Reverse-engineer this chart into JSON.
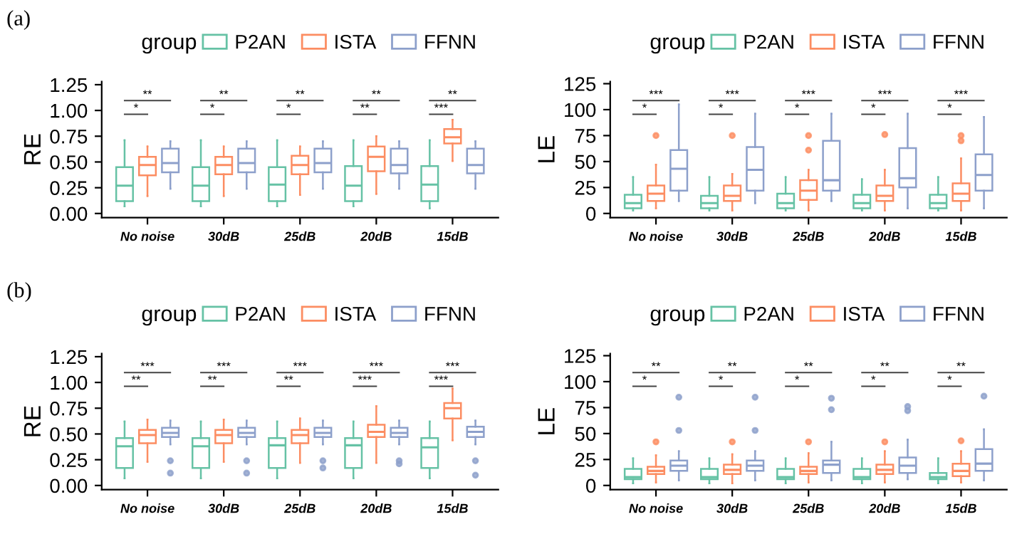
{
  "chart_data": [
    {
      "type": "box",
      "title": "(a)",
      "ylabel": "RE",
      "legend_title": "group",
      "legend": "top",
      "grid": false,
      "categories": [
        "No noise",
        "30dB",
        "25dB",
        "20dB",
        "15dB"
      ],
      "ylim": [
        -0.04,
        1.28
      ],
      "yticks": [
        {
          "value": 0,
          "label": "0.00"
        },
        {
          "value": 0.25,
          "label": "0.25"
        },
        {
          "value": 0.5,
          "label": "0.50"
        },
        {
          "value": 0.75,
          "label": "0.75"
        },
        {
          "value": 1,
          "label": "1.00"
        },
        {
          "value": 1.25,
          "label": "1.25"
        }
      ],
      "annotations": [
        "*",
        "**",
        "*",
        "**",
        "*",
        "**",
        "**",
        "**",
        "***",
        "**"
      ],
      "series": [
        {
          "name": "P2AN",
          "color": "#66c2a5",
          "boxes": [
            {
              "low": 0.07,
              "q1": 0.12,
              "median": 0.27,
              "q3": 0.45,
              "high": 0.71
            },
            {
              "low": 0.07,
              "q1": 0.12,
              "median": 0.27,
              "q3": 0.45,
              "high": 0.71
            },
            {
              "low": 0.07,
              "q1": 0.12,
              "median": 0.28,
              "q3": 0.45,
              "high": 0.71
            },
            {
              "low": 0.07,
              "q1": 0.12,
              "median": 0.27,
              "q3": 0.46,
              "high": 0.71
            },
            {
              "low": 0.05,
              "q1": 0.12,
              "median": 0.28,
              "q3": 0.46,
              "high": 0.71
            }
          ]
        },
        {
          "name": "ISTA",
          "color": "#fc8d62",
          "boxes": [
            {
              "low": 0.17,
              "q1": 0.37,
              "median": 0.47,
              "q3": 0.55,
              "high": 0.65
            },
            {
              "low": 0.17,
              "q1": 0.38,
              "median": 0.47,
              "q3": 0.55,
              "high": 0.65
            },
            {
              "low": 0.18,
              "q1": 0.38,
              "median": 0.47,
              "q3": 0.56,
              "high": 0.65
            },
            {
              "low": 0.19,
              "q1": 0.41,
              "median": 0.55,
              "q3": 0.65,
              "high": 0.75
            },
            {
              "low": 0.51,
              "q1": 0.68,
              "median": 0.74,
              "q3": 0.82,
              "high": 0.91
            }
          ]
        },
        {
          "name": "FFNN",
          "color": "#8da0cb",
          "boxes": [
            {
              "low": 0.24,
              "q1": 0.4,
              "median": 0.49,
              "q3": 0.63,
              "high": 0.7
            },
            {
              "low": 0.24,
              "q1": 0.4,
              "median": 0.49,
              "q3": 0.63,
              "high": 0.7
            },
            {
              "low": 0.24,
              "q1": 0.4,
              "median": 0.49,
              "q3": 0.63,
              "high": 0.7
            },
            {
              "low": 0.24,
              "q1": 0.39,
              "median": 0.47,
              "q3": 0.63,
              "high": 0.7
            },
            {
              "low": 0.24,
              "q1": 0.39,
              "median": 0.47,
              "q3": 0.63,
              "high": 0.7
            }
          ]
        }
      ]
    },
    {
      "type": "box",
      "ylabel": "LE",
      "legend_title": "group",
      "legend": "top",
      "grid": false,
      "categories": [
        "No noise",
        "30dB",
        "25dB",
        "20dB",
        "15dB"
      ],
      "ylim": [
        -4,
        127
      ],
      "yticks": [
        0,
        25,
        50,
        75,
        100,
        125
      ],
      "annotations": [
        "*",
        "***",
        "*",
        "***",
        "*",
        "***",
        "*",
        "***",
        "*",
        "***"
      ],
      "series": [
        {
          "name": "P2AN",
          "color": "#66c2a5",
          "boxes": [
            {
              "low": 3,
              "q1": 5,
              "median": 10,
              "q3": 18,
              "high": 35
            },
            {
              "low": 3,
              "q1": 5,
              "median": 10,
              "q3": 17,
              "high": 35
            },
            {
              "low": 3,
              "q1": 5,
              "median": 10,
              "q3": 19,
              "high": 35
            },
            {
              "low": 3,
              "q1": 5,
              "median": 10,
              "q3": 18,
              "high": 33
            },
            {
              "low": 3,
              "q1": 5,
              "median": 10,
              "q3": 18,
              "high": 35
            }
          ]
        },
        {
          "name": "ISTA",
          "color": "#fc8d62",
          "boxes": [
            {
              "low": 5,
              "q1": 12,
              "median": 19,
              "q3": 27,
              "high": 47,
              "outliers": [
                75
              ]
            },
            {
              "low": 3,
              "q1": 12,
              "median": 17,
              "q3": 27,
              "high": 38,
              "outliers": [
                75
              ]
            },
            {
              "low": 3,
              "q1": 13,
              "median": 22,
              "q3": 32,
              "high": 42,
              "outliers": [
                61,
                75
              ]
            },
            {
              "low": 3,
              "q1": 12,
              "median": 17,
              "q3": 27,
              "high": 42,
              "outliers": [
                76
              ]
            },
            {
              "low": 3,
              "q1": 12,
              "median": 19,
              "q3": 29,
              "high": 53,
              "outliers": [
                70,
                75
              ]
            }
          ]
        },
        {
          "name": "FFNN",
          "color": "#8da0cb",
          "boxes": [
            {
              "low": 12,
              "q1": 22,
              "median": 43,
              "q3": 61,
              "high": 105
            },
            {
              "low": 10,
              "q1": 22,
              "median": 42,
              "q3": 64,
              "high": 96
            },
            {
              "low": 12,
              "q1": 22,
              "median": 32,
              "q3": 70,
              "high": 96
            },
            {
              "low": 5,
              "q1": 25,
              "median": 34,
              "q3": 63,
              "high": 96
            },
            {
              "low": 5,
              "q1": 22,
              "median": 37,
              "q3": 57,
              "high": 93
            }
          ]
        }
      ]
    },
    {
      "type": "box",
      "title": "(b)",
      "ylabel": "RE",
      "legend_title": "group",
      "legend": "top",
      "grid": false,
      "categories": [
        "No noise",
        "30dB",
        "25dB",
        "20dB",
        "15dB"
      ],
      "ylim": [
        -0.04,
        1.28
      ],
      "yticks": [
        {
          "value": 0,
          "label": "0.00"
        },
        {
          "value": 0.25,
          "label": "0.25"
        },
        {
          "value": 0.5,
          "label": "0.50"
        },
        {
          "value": 0.75,
          "label": "0.75"
        },
        {
          "value": 1,
          "label": "1.00"
        },
        {
          "value": 1.25,
          "label": "1.25"
        }
      ],
      "annotations": [
        "**",
        "***",
        "**",
        "***",
        "**",
        "***",
        "***",
        "***",
        "***",
        "***"
      ],
      "series": [
        {
          "name": "P2AN",
          "color": "#66c2a5",
          "boxes": [
            {
              "low": 0.07,
              "q1": 0.17,
              "median": 0.38,
              "q3": 0.46,
              "high": 0.62
            },
            {
              "low": 0.07,
              "q1": 0.17,
              "median": 0.38,
              "q3": 0.46,
              "high": 0.62
            },
            {
              "low": 0.07,
              "q1": 0.17,
              "median": 0.39,
              "q3": 0.46,
              "high": 0.62
            },
            {
              "low": 0.07,
              "q1": 0.17,
              "median": 0.39,
              "q3": 0.46,
              "high": 0.62
            },
            {
              "low": 0.07,
              "q1": 0.17,
              "median": 0.37,
              "q3": 0.46,
              "high": 0.62
            }
          ]
        },
        {
          "name": "ISTA",
          "color": "#fc8d62",
          "boxes": [
            {
              "low": 0.23,
              "q1": 0.41,
              "median": 0.49,
              "q3": 0.54,
              "high": 0.64
            },
            {
              "low": 0.23,
              "q1": 0.41,
              "median": 0.49,
              "q3": 0.54,
              "high": 0.64
            },
            {
              "low": 0.22,
              "q1": 0.41,
              "median": 0.49,
              "q3": 0.54,
              "high": 0.65
            },
            {
              "low": 0.22,
              "q1": 0.47,
              "median": 0.52,
              "q3": 0.59,
              "high": 0.77
            },
            {
              "low": 0.44,
              "q1": 0.65,
              "median": 0.75,
              "q3": 0.8,
              "high": 0.94
            }
          ]
        },
        {
          "name": "FFNN",
          "color": "#8da0cb",
          "boxes": [
            {
              "low": 0.4,
              "q1": 0.47,
              "median": 0.51,
              "q3": 0.56,
              "high": 0.63,
              "outliers": [
                0.24,
                0.12
              ]
            },
            {
              "low": 0.4,
              "q1": 0.47,
              "median": 0.51,
              "q3": 0.56,
              "high": 0.63,
              "outliers": [
                0.24,
                0.12
              ]
            },
            {
              "low": 0.4,
              "q1": 0.47,
              "median": 0.51,
              "q3": 0.56,
              "high": 0.63,
              "outliers": [
                0.24,
                0.17
              ]
            },
            {
              "low": 0.4,
              "q1": 0.47,
              "median": 0.51,
              "q3": 0.56,
              "high": 0.63,
              "outliers": [
                0.24,
                0.21
              ]
            },
            {
              "low": 0.4,
              "q1": 0.47,
              "median": 0.52,
              "q3": 0.57,
              "high": 0.63,
              "outliers": [
                0.24,
                0.1
              ]
            }
          ]
        }
      ]
    },
    {
      "type": "box",
      "ylabel": "LE",
      "legend_title": "group",
      "legend": "top",
      "grid": false,
      "categories": [
        "No noise",
        "30dB",
        "25dB",
        "20dB",
        "15dB"
      ],
      "ylim": [
        -4,
        127
      ],
      "yticks": [
        0,
        25,
        50,
        75,
        100,
        125
      ],
      "annotations": [
        "*",
        "**",
        "*",
        "**",
        "*",
        "**",
        "*",
        "**",
        "*",
        "**"
      ],
      "series": [
        {
          "name": "P2AN",
          "color": "#66c2a5",
          "boxes": [
            {
              "low": 2,
              "q1": 6,
              "median": 8,
              "q3": 16,
              "high": 26
            },
            {
              "low": 2,
              "q1": 6,
              "median": 8,
              "q3": 16,
              "high": 26
            },
            {
              "low": 2,
              "q1": 6,
              "median": 8,
              "q3": 16,
              "high": 26
            },
            {
              "low": 2,
              "q1": 6,
              "median": 8,
              "q3": 16,
              "high": 26
            },
            {
              "low": 2,
              "q1": 6,
              "median": 8,
              "q3": 12,
              "high": 26
            }
          ]
        },
        {
          "name": "ISTA",
          "color": "#fc8d62",
          "boxes": [
            {
              "low": 3,
              "q1": 11,
              "median": 14,
              "q3": 18,
              "high": 29,
              "outliers": [
                42
              ]
            },
            {
              "low": 2,
              "q1": 11,
              "median": 15,
              "q3": 20,
              "high": 30,
              "outliers": [
                42
              ]
            },
            {
              "low": 3,
              "q1": 11,
              "median": 14,
              "q3": 18,
              "high": 31,
              "outliers": [
                42
              ]
            },
            {
              "low": 3,
              "q1": 11,
              "median": 15,
              "q3": 20,
              "high": 33,
              "outliers": [
                42
              ]
            },
            {
              "low": 3,
              "q1": 9,
              "median": 14,
              "q3": 21,
              "high": 33,
              "outliers": [
                43
              ]
            }
          ]
        },
        {
          "name": "FFNN",
          "color": "#8da0cb",
          "boxes": [
            {
              "low": 5,
              "q1": 14,
              "median": 19,
              "q3": 24,
              "high": 33,
              "outliers": [
                53,
                85
              ]
            },
            {
              "low": 5,
              "q1": 14,
              "median": 19,
              "q3": 24,
              "high": 33,
              "outliers": [
                53,
                85
              ]
            },
            {
              "low": 5,
              "q1": 12,
              "median": 20,
              "q3": 24,
              "high": 42,
              "outliers": [
                73,
                84
              ]
            },
            {
              "low": 6,
              "q1": 12,
              "median": 19,
              "q3": 27,
              "high": 44,
              "outliers": [
                72,
                76
              ]
            },
            {
              "low": 5,
              "q1": 14,
              "median": 21,
              "q3": 35,
              "high": 54,
              "outliers": [
                86
              ]
            }
          ]
        }
      ]
    }
  ]
}
